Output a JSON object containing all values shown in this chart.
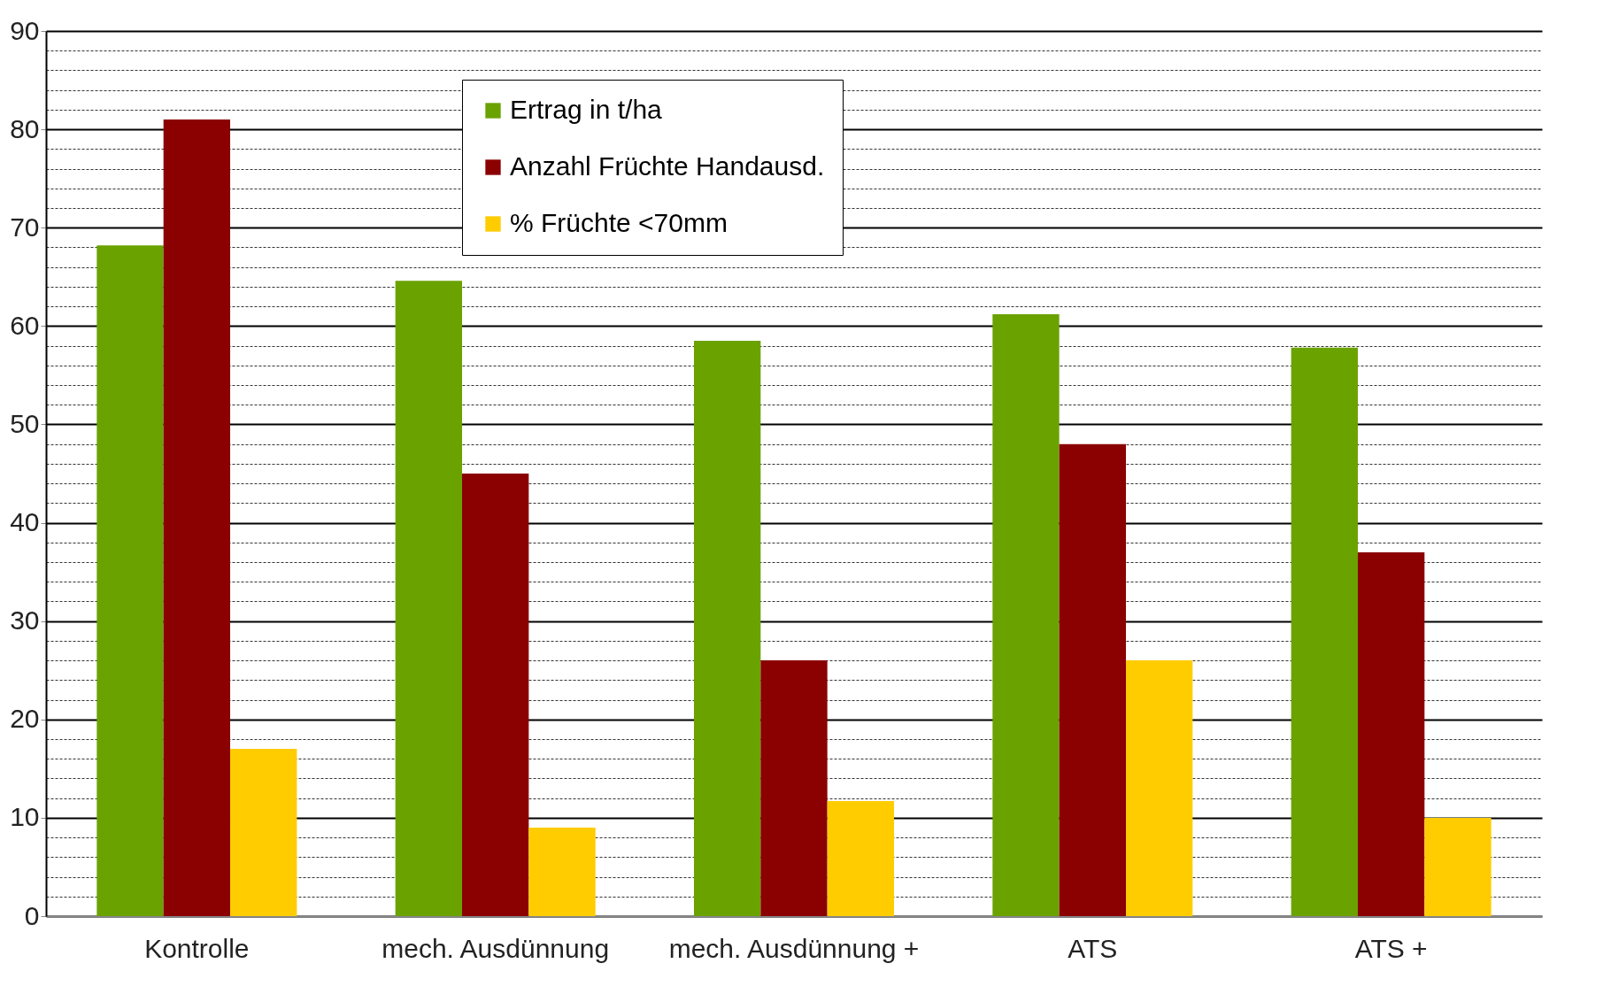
{
  "chart_data": {
    "type": "bar",
    "categories": [
      "Kontrolle",
      "mech. Ausdünnung",
      "mech. Ausdünnung +",
      "ATS",
      "ATS +"
    ],
    "series": [
      {
        "name": "Ertrag in t/ha",
        "color": "#6aa200",
        "values": [
          68.2,
          64.6,
          58.5,
          61.2,
          57.8
        ]
      },
      {
        "name": "Anzahl Früchte Handausd.",
        "color": "#8b0000",
        "values": [
          81,
          45,
          26,
          48,
          37
        ]
      },
      {
        "name": "% Früchte <70mm",
        "color": "#ffcc00",
        "values": [
          17,
          9,
          11.7,
          26,
          10
        ]
      }
    ],
    "ylim": [
      0,
      90
    ],
    "yticks": [
      0,
      {
        "value": 2,
        "label": null
      },
      {
        "value": 4,
        "label": null
      },
      {
        "value": 6,
        "label": null
      },
      {
        "value": 8,
        "label": null
      },
      10,
      {
        "value": 12,
        "label": null
      },
      {
        "value": 14,
        "label": null
      },
      {
        "value": 16,
        "label": null
      },
      {
        "value": 18,
        "label": null
      },
      20,
      {
        "value": 22,
        "label": null
      },
      {
        "value": 24,
        "label": null
      },
      {
        "value": 26,
        "label": null
      },
      {
        "value": 28,
        "label": null
      },
      30,
      {
        "value": 32,
        "label": null
      },
      {
        "value": 34,
        "label": null
      },
      {
        "value": 36,
        "label": null
      },
      {
        "value": 38,
        "label": null
      },
      40,
      {
        "value": 42,
        "label": null
      },
      {
        "value": 44,
        "label": null
      },
      {
        "value": 46,
        "label": null
      },
      {
        "value": 48,
        "label": null
      },
      50,
      {
        "value": 52,
        "label": null
      },
      {
        "value": 54,
        "label": null
      },
      {
        "value": 56,
        "label": null
      },
      {
        "value": 58,
        "label": null
      },
      60,
      {
        "value": 62,
        "label": null
      },
      {
        "value": 64,
        "label": null
      },
      {
        "value": 66,
        "label": null
      },
      {
        "value": 68,
        "label": null
      },
      70,
      {
        "value": 72,
        "label": null
      },
      {
        "value": 74,
        "label": null
      },
      {
        "value": 76,
        "label": null
      },
      {
        "value": 78,
        "label": null
      },
      80,
      {
        "value": 82,
        "label": null
      },
      {
        "value": 84,
        "label": null
      },
      {
        "value": 86,
        "label": null
      },
      {
        "value": 88,
        "label": null
      },
      90
    ],
    "grid": true,
    "legend": "top"
  }
}
